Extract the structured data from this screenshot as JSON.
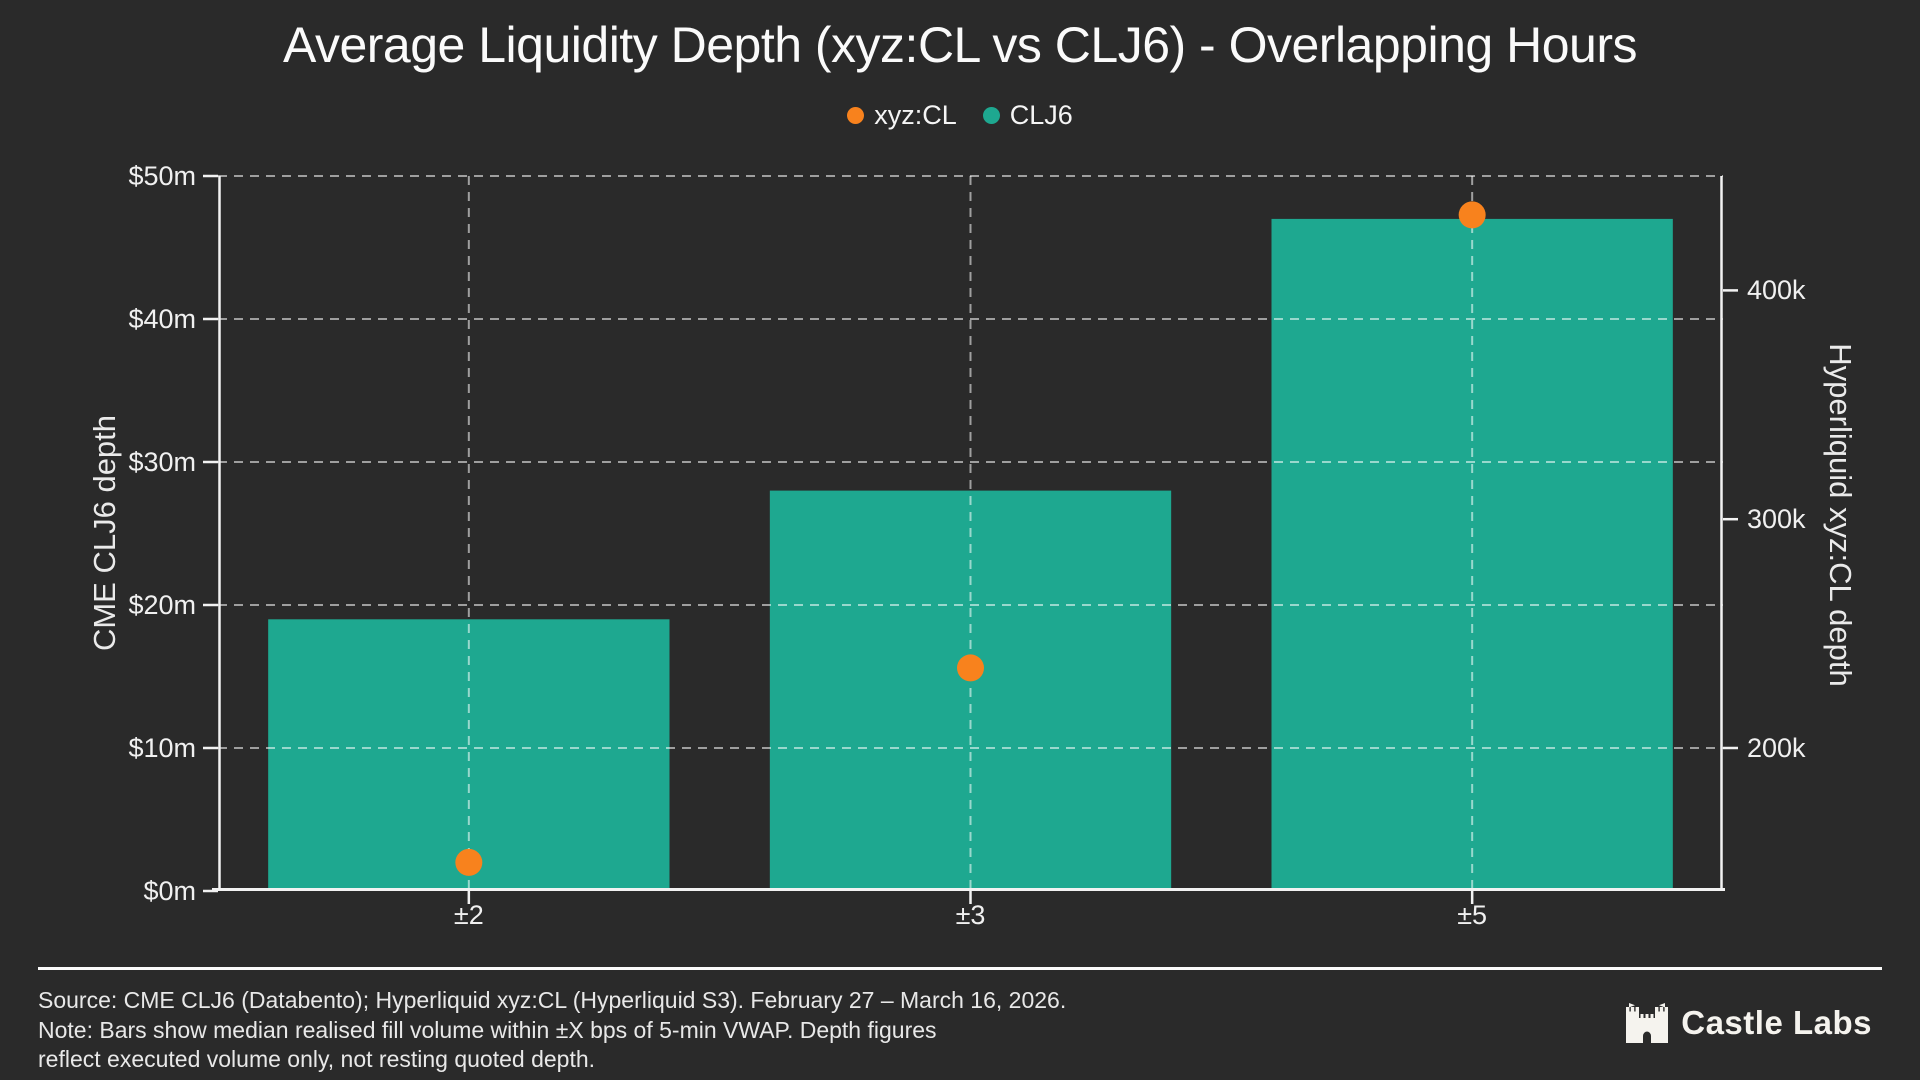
{
  "title": "Average Liquidity Depth (xyz:CL vs CLJ6) - Overlapping Hours",
  "legend": [
    {
      "label": "xyz:CL",
      "color": "#f8821d"
    },
    {
      "label": "CLJ6",
      "color": "#1ea890"
    }
  ],
  "chart_data": {
    "type": "bar",
    "title": "Average Liquidity Depth (xyz:CL vs CLJ6) - Overlapping Hours",
    "categories": [
      "±2",
      "±3",
      "±5"
    ],
    "xlabel": "",
    "ylabel_left": "CME CLJ6 depth",
    "ylabel_right": "Hyperliquid xyz:CL depth",
    "ylim_left": [
      0,
      50
    ],
    "ylim_right": [
      137.5,
      450
    ],
    "grid": "dashed horizontal at each $10m and vertical at each category center",
    "legend_position": "top-center",
    "y_ticks_left": [
      {
        "v": 0,
        "label": "$0m"
      },
      {
        "v": 10,
        "label": "$10m"
      },
      {
        "v": 20,
        "label": "$20m"
      },
      {
        "v": 30,
        "label": "$30m"
      },
      {
        "v": 40,
        "label": "$40m"
      },
      {
        "v": 50,
        "label": "$50m"
      }
    ],
    "y_ticks_right": [
      {
        "v": 200,
        "label": "200k"
      },
      {
        "v": 300,
        "label": "300k"
      },
      {
        "v": 400,
        "label": "400k"
      }
    ],
    "series": [
      {
        "name": "CLJ6",
        "render": "bar",
        "axis": "left",
        "unit": "$m",
        "color": "#1ea890",
        "values": [
          19,
          28,
          47
        ]
      },
      {
        "name": "xyz:CL",
        "render": "scatter",
        "axis": "right",
        "unit": "k",
        "color": "#f8821d",
        "values": [
          150,
          235,
          433
        ]
      }
    ]
  },
  "footer": {
    "source_line": "Source: CME CLJ6 (Databento); Hyperliquid xyz:CL (Hyperliquid S3). February 27 – March 16, 2026.",
    "note_line_1": "Note: Bars show median realised fill volume within ±X bps of 5-min VWAP. Depth figures",
    "note_line_2": "reflect executed volume only, not resting quoted depth.",
    "brand": "Castle Labs"
  },
  "colors": {
    "background": "#2a2a2a",
    "text": "#f0f0f0",
    "accent_orange": "#f8821d",
    "accent_teal": "#1ea890",
    "gridline": "rgba(255,255,255,0.55)"
  }
}
